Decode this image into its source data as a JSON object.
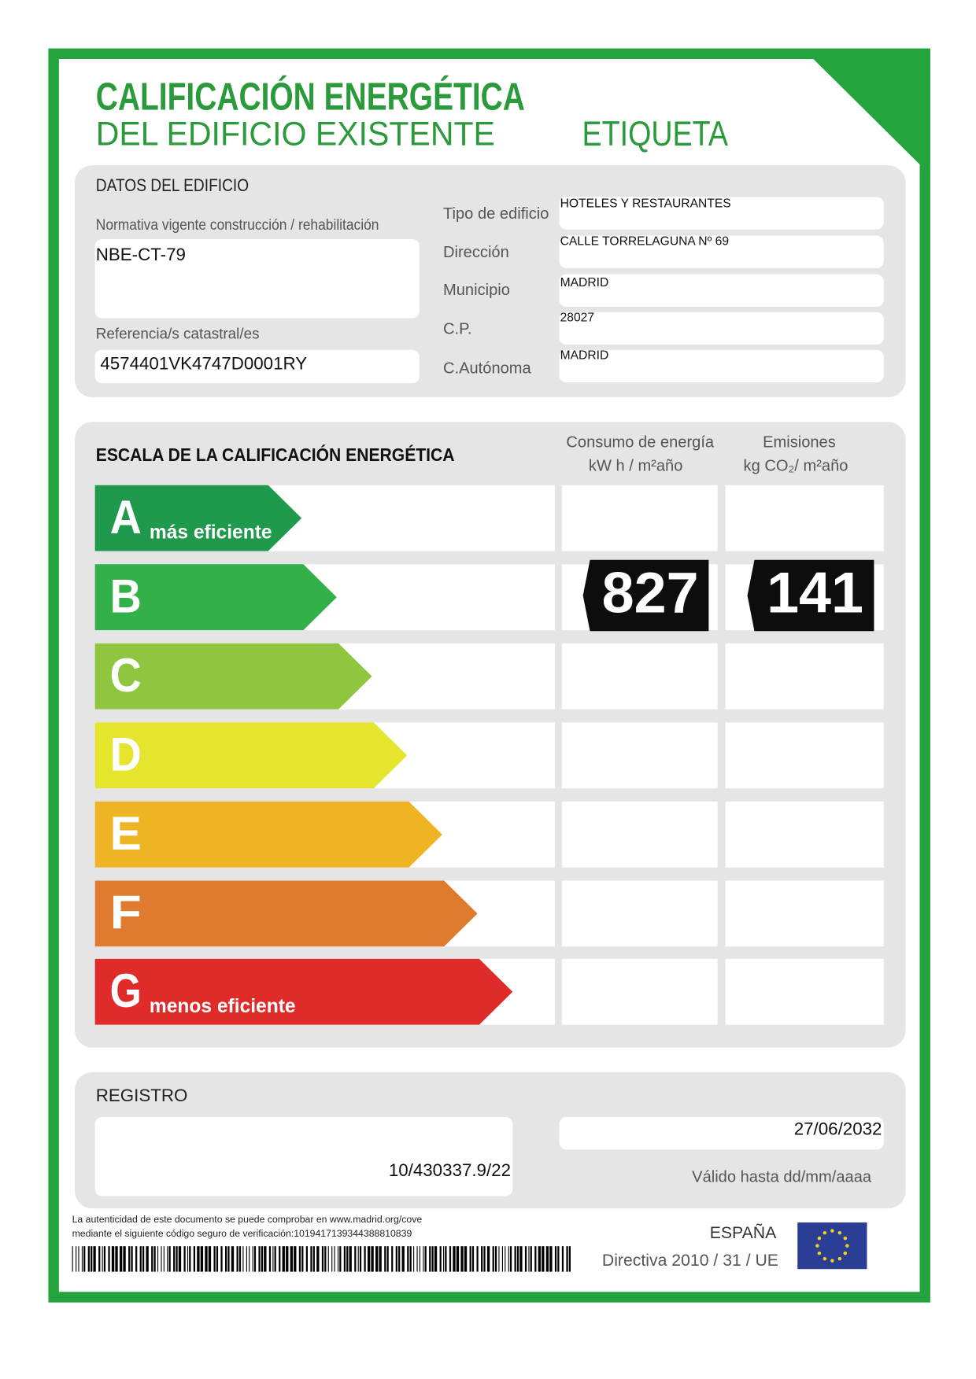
{
  "header": {
    "title": "CALIFICACIÓN ENERGÉTICA",
    "subtitle": "DEL EDIFICIO EXISTENTE",
    "label": "ETIQUETA"
  },
  "building": {
    "title": "DATOS DEL EDIFICIO",
    "regulation_label": "Normativa vigente construcción / rehabilitación",
    "regulation": "NBE-CT-79",
    "cadastral_label": "Referencia/s catastral/es",
    "cadastral": "4574401VK4747D0001RY",
    "fields": [
      {
        "label": "Tipo de edificio",
        "value": "HOTELES Y RESTAURANTES"
      },
      {
        "label": "Dirección",
        "value": "CALLE TORRELAGUNA Nº 69"
      },
      {
        "label": "Municipio",
        "value": "MADRID"
      },
      {
        "label": "C.P.",
        "value": "28027"
      },
      {
        "label": "C.Autónoma",
        "value": "MADRID"
      }
    ]
  },
  "scale": {
    "title": "ESCALA DE LA CALIFICACIÓN ENERGÉTICA",
    "consumption_header": [
      "Consumo de energía",
      "kW h / m²año"
    ],
    "emissions_header": [
      "Emisiones",
      "kg CO₂/ m²año"
    ],
    "classes": [
      {
        "letter": "A",
        "note": "más eficiente",
        "color": "#1f9a4c"
      },
      {
        "letter": "B",
        "color": "#34b04a"
      },
      {
        "letter": "C",
        "color": "#8fc640"
      },
      {
        "letter": "D",
        "color": "#e6e52e"
      },
      {
        "letter": "E",
        "color": "#efb424"
      },
      {
        "letter": "F",
        "color": "#e07a2e"
      },
      {
        "letter": "G",
        "note": "menos eficiente",
        "color": "#e02b2b"
      }
    ],
    "rating": {
      "class": "B",
      "consumption": 827,
      "emissions": 141
    }
  },
  "registry": {
    "title": "REGISTRO",
    "number": "10/430337.9/22",
    "valid_until": "27/06/2032",
    "valid_label": "Válido hasta dd/mm/aaaa"
  },
  "footer": {
    "verification": [
      "La autenticidad de este documento se puede comprobar en www.madrid.org/cove",
      "mediante el siguiente código seguro de verificación:1019417139344388810839"
    ],
    "country": "ESPAÑA",
    "directive": "Directiva 2010 / 31 / UE"
  }
}
